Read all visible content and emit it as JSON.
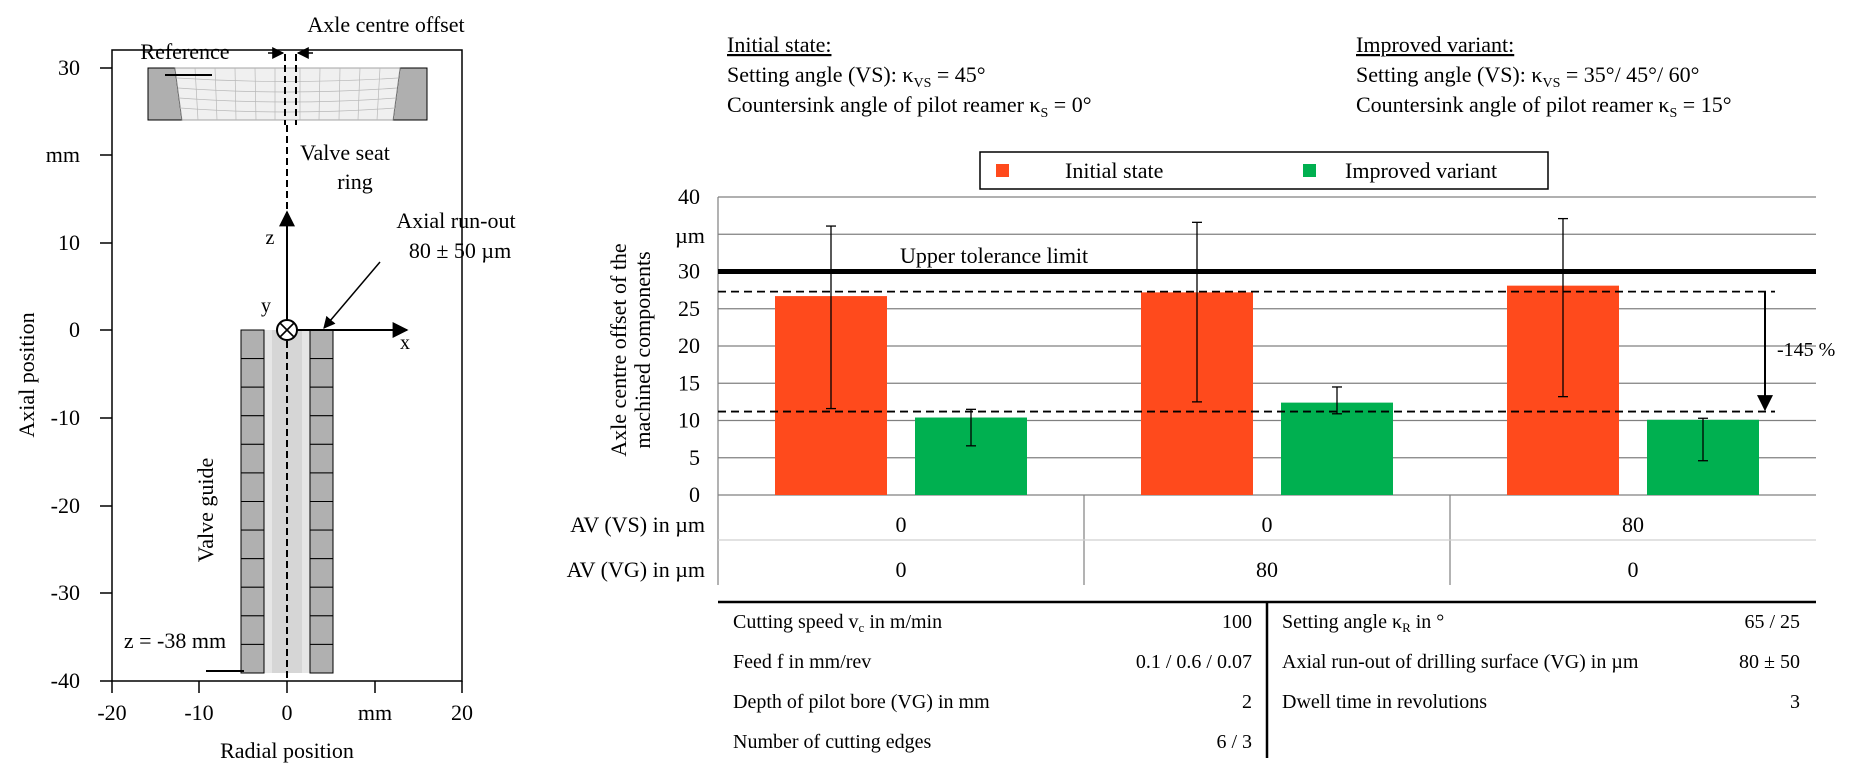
{
  "colors": {
    "initial": "#FF4A1C",
    "improved": "#00B050",
    "frame": "#000000",
    "grid": "#808080",
    "part": "#B0B0B0"
  },
  "left_panel": {
    "label_axle_offset": "Axle centre offset",
    "label_reference": "Reference",
    "label_valve_seat_ring_1": "Valve seat",
    "label_valve_seat_ring_2": "ring",
    "label_runout_1": "Axial run-out",
    "label_runout_2": "80 ± 50 µm",
    "label_valve_guide": "Valve guide",
    "label_z_pos": "z = -38 mm",
    "axis_z": "z",
    "axis_y": "y",
    "axis_x": "x",
    "ylabel": "Axial position",
    "xlabel": "Radial position",
    "y_ticks": [
      "30",
      "mm",
      "10",
      "0",
      "-10",
      "-20",
      "-30",
      "-40"
    ],
    "x_ticks": [
      "-20",
      "-10",
      "0",
      "mm",
      "20"
    ]
  },
  "header": {
    "initial_title": "Initial state:",
    "initial_l1_pre": "Setting angle (VS): κ",
    "initial_l1_sub": "VS",
    "initial_l1_post": " = 45°",
    "initial_l2_pre": "Countersink angle of pilot reamer κ",
    "initial_l2_sub": "S",
    "initial_l2_post": " = 0°",
    "improved_title": "Improved variant:",
    "improved_l1_pre": "Setting angle (VS): κ",
    "improved_l1_sub": "VS",
    "improved_l1_post": " = 35°/ 45°/ 60°",
    "improved_l2_pre": "Countersink angle of pilot reamer κ",
    "improved_l2_sub": "S",
    "improved_l2_post": " = 15°"
  },
  "legend": {
    "initial": "Initial state",
    "improved": "Improved variant"
  },
  "chart_data": {
    "type": "bar",
    "ylabel_1": "Axle centre offset of the",
    "ylabel_2": "machined components",
    "y_unit": "µm",
    "ylim": [
      0,
      40
    ],
    "y_ticks": [
      0,
      5,
      10,
      15,
      20,
      25,
      30,
      35,
      40
    ],
    "grid": true,
    "legend_position": "top",
    "categories": [
      "AV(VS)=0, AV(VG)=0",
      "AV(VS)=0, AV(VG)=80",
      "AV(VS)=80, AV(VG)=0"
    ],
    "series": [
      {
        "name": "Initial state",
        "values": [
          26.7,
          27.2,
          28.1
        ],
        "err_low": [
          11.6,
          12.5,
          13.2
        ],
        "err_high": [
          36.1,
          36.6,
          37.1
        ]
      },
      {
        "name": "Improved variant",
        "values": [
          10.4,
          12.4,
          10.1
        ],
        "err_low": [
          6.6,
          10.9,
          4.6
        ],
        "err_high": [
          11.5,
          14.5,
          10.3
        ]
      }
    ],
    "tolerance_label": "Upper tolerance limit",
    "tolerance_value": 30,
    "dashed_upper": 27.3,
    "dashed_lower": 11.2,
    "reduction_label": "-145 %",
    "row1_label": "AV (VS) in µm",
    "row1_values": [
      "0",
      "0",
      "80"
    ],
    "row2_label": "AV (VG) in µm",
    "row2_values": [
      "0",
      "80",
      "0"
    ]
  },
  "params_left": [
    {
      "label_pre": "Cutting speed v",
      "label_sub": "c",
      "label_post": " in m/min",
      "value": "100"
    },
    {
      "label_pre": "Feed f  in mm/rev",
      "label_sub": "",
      "label_post": "",
      "value": "0.1 / 0.6 / 0.07"
    },
    {
      "label_pre": "Depth of pilot bore (VG) in mm",
      "label_sub": "",
      "label_post": "",
      "value": "2"
    },
    {
      "label_pre": "Number of cutting edges",
      "label_sub": "",
      "label_post": "",
      "value": "6 / 3"
    }
  ],
  "params_right": [
    {
      "label_pre": "Setting angle κ",
      "label_sub": "R",
      "label_post": " in °",
      "value": "65 / 25"
    },
    {
      "label_pre": "Axial run-out of drilling surface (VG) in µm",
      "label_sub": "",
      "label_post": "",
      "value": "80 ± 50"
    },
    {
      "label_pre": "Dwell time in revolutions",
      "label_sub": "",
      "label_post": "",
      "value": "3"
    }
  ]
}
